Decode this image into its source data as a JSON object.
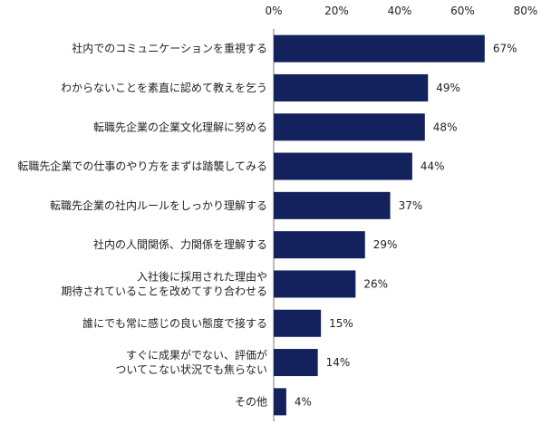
{
  "chart_data": {
    "type": "bar",
    "orientation": "horizontal",
    "title": "",
    "xlabel": "",
    "ylabel": "",
    "xlim": [
      0,
      80
    ],
    "ticks": [
      "0%",
      "20%",
      "40%",
      "60%",
      "80%"
    ],
    "tick_values": [
      0,
      20,
      40,
      60,
      80
    ],
    "grid": false,
    "bar_color": "#13215d",
    "categories": [
      [
        "社内でのコミュニケーションを重視する"
      ],
      [
        "わからないことを素直に認めて教えを乞う"
      ],
      [
        "転職先企業の企業文化理解に努める"
      ],
      [
        "転職先企業での仕事のやり方をまずは踏襲してみる"
      ],
      [
        "転職先企業の社内ルールをしっかり理解する"
      ],
      [
        "社内の人間関係、力関係を理解する"
      ],
      [
        "入社後に採用された理由や",
        "期待されていることを改めてすり合わせる"
      ],
      [
        "誰にでも常に感じの良い態度で接する"
      ],
      [
        "すぐに成果がでない、評価が",
        "ついてこない状況でも焦らない"
      ],
      [
        "その他"
      ]
    ],
    "values": [
      67,
      49,
      48,
      44,
      37,
      29,
      26,
      15,
      14,
      4
    ],
    "value_labels": [
      "67%",
      "49%",
      "48%",
      "44%",
      "37%",
      "29%",
      "26%",
      "15%",
      "14%",
      "4%"
    ]
  }
}
